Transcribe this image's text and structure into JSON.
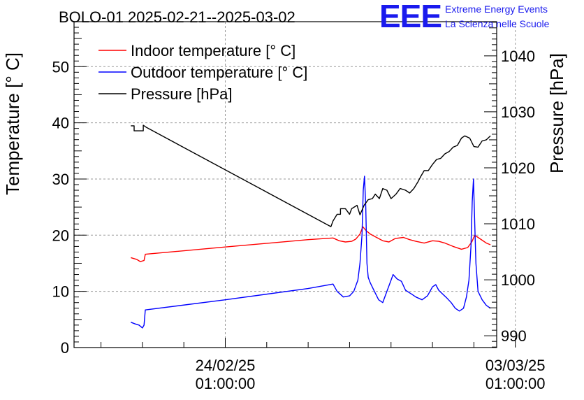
{
  "title": "BOLO-01 2025-02-21--2025-03-02",
  "logo": {
    "mark": "EEE",
    "line1": "Extreme Energy Events",
    "line2": "La Scienza nelle Scuole"
  },
  "colors": {
    "indoor": "#ff0000",
    "outdoor": "#0000ff",
    "pressure": "#000000",
    "logo": "#1a1aee",
    "grid": "#9a9a9a"
  },
  "chart_data": {
    "type": "line",
    "ylabel": "Temperature [° C]",
    "y2label": "Pressure [hPa]",
    "xlabel": "",
    "ylim": [
      0,
      58
    ],
    "y2lim": [
      987.9,
      1046.1
    ],
    "xlim_days": [
      -3.65,
      6.55
    ],
    "yticks": [
      0,
      10,
      20,
      30,
      40,
      50
    ],
    "y2ticks": [
      990,
      1000,
      1010,
      1020,
      1030,
      1040
    ],
    "x_ticks": [
      {
        "day": 0,
        "date": "24/02/25",
        "time": "01:00:00"
      },
      {
        "day": 7,
        "date": "03/03/25",
        "time": "01:00:00"
      }
    ],
    "grid": true,
    "legend_position": "top-left",
    "legend": [
      {
        "label": "Indoor temperature [° C]",
        "color": "#ff0000"
      },
      {
        "label": "Outdoor temperature [° C]",
        "color": "#0000ff"
      },
      {
        "label": "Pressure [hPa]",
        "color": "#000000"
      }
    ],
    "series": [
      {
        "name": "Indoor temperature [° C]",
        "axis": "left",
        "x": [
          -2.28,
          -2.14,
          -2.05,
          -1.96,
          -1.93,
          0.0,
          2.0,
          2.6,
          2.75,
          2.9,
          3.05,
          3.15,
          3.25,
          3.32,
          3.4,
          3.5,
          3.65,
          3.8,
          3.95,
          4.1,
          4.3,
          4.45,
          4.6,
          4.8,
          5.0,
          5.15,
          5.3,
          5.5,
          5.7,
          5.85,
          5.95,
          6.02,
          6.1,
          6.2,
          6.3,
          6.4
        ],
        "y": [
          16.0,
          15.7,
          15.3,
          15.5,
          16.6,
          17.9,
          19.2,
          19.5,
          19.0,
          18.8,
          18.9,
          19.3,
          20.2,
          21.5,
          20.8,
          20.2,
          19.6,
          19.0,
          18.8,
          19.4,
          19.6,
          19.2,
          18.9,
          18.6,
          19.0,
          18.9,
          18.6,
          18.0,
          17.5,
          17.8,
          18.8,
          20.0,
          19.6,
          19.1,
          18.6,
          18.3
        ]
      },
      {
        "name": "Outdoor temperature [° C]",
        "axis": "left",
        "x": [
          -2.28,
          -2.17,
          -2.08,
          -2.0,
          -1.96,
          -1.93,
          0.0,
          2.0,
          2.6,
          2.7,
          2.85,
          3.0,
          3.1,
          3.2,
          3.25,
          3.3,
          3.33,
          3.36,
          3.39,
          3.42,
          3.45,
          3.5,
          3.6,
          3.7,
          3.8,
          3.9,
          4.0,
          4.05,
          4.15,
          4.25,
          4.35,
          4.5,
          4.6,
          4.75,
          4.88,
          5.0,
          5.08,
          5.15,
          5.25,
          5.35,
          5.45,
          5.55,
          5.65,
          5.75,
          5.82,
          5.88,
          5.93,
          5.96,
          5.99,
          6.02,
          6.05,
          6.1,
          6.2,
          6.3,
          6.4
        ],
        "y": [
          4.5,
          4.2,
          4.0,
          3.5,
          4.0,
          6.7,
          8.5,
          10.5,
          11.3,
          10.0,
          9.0,
          9.2,
          10.0,
          12.0,
          15.0,
          20.0,
          28.0,
          30.5,
          25.0,
          15.0,
          12.5,
          11.5,
          10.0,
          8.5,
          8.0,
          10.0,
          12.0,
          13.0,
          12.2,
          11.8,
          10.2,
          9.5,
          9.0,
          8.5,
          9.2,
          10.8,
          11.2,
          10.2,
          9.5,
          8.8,
          8.0,
          7.0,
          6.5,
          7.0,
          9.0,
          12.0,
          18.0,
          26.0,
          30.0,
          22.0,
          15.0,
          10.0,
          8.5,
          7.5,
          7.0
        ]
      },
      {
        "name": "Pressure [hPa]",
        "axis": "right",
        "x": [
          -2.28,
          -2.2,
          -2.2,
          -1.98,
          -1.98,
          -1.9,
          2.55,
          2.6,
          2.7,
          2.78,
          2.78,
          2.9,
          3.0,
          3.05,
          3.18,
          3.25,
          3.35,
          3.45,
          3.55,
          3.62,
          3.72,
          3.8,
          3.9,
          4.0,
          4.12,
          4.22,
          4.35,
          4.45,
          4.55,
          4.65,
          4.72,
          4.8,
          4.9,
          5.0,
          5.1,
          5.2,
          5.3,
          5.4,
          5.5,
          5.6,
          5.7,
          5.78,
          5.9,
          6.0,
          6.1,
          6.2,
          6.3,
          6.4
        ],
        "y": [
          1027.5,
          1027.5,
          1026.6,
          1026.6,
          1027.6,
          1027.2,
          1009.5,
          1010.5,
          1011.7,
          1011.7,
          1012.7,
          1012.7,
          1011.7,
          1012.7,
          1013.3,
          1011.6,
          1013.3,
          1014.3,
          1014.5,
          1015.3,
          1014.5,
          1016.3,
          1016.0,
          1014.5,
          1015.3,
          1016.3,
          1016.0,
          1015.5,
          1016.3,
          1017.5,
          1018.5,
          1019.5,
          1019.5,
          1020.6,
          1021.5,
          1021.7,
          1022.5,
          1022.9,
          1023.7,
          1024.0,
          1025.3,
          1025.7,
          1025.3,
          1023.8,
          1023.7,
          1024.8,
          1025.0,
          1025.7
        ]
      }
    ]
  }
}
